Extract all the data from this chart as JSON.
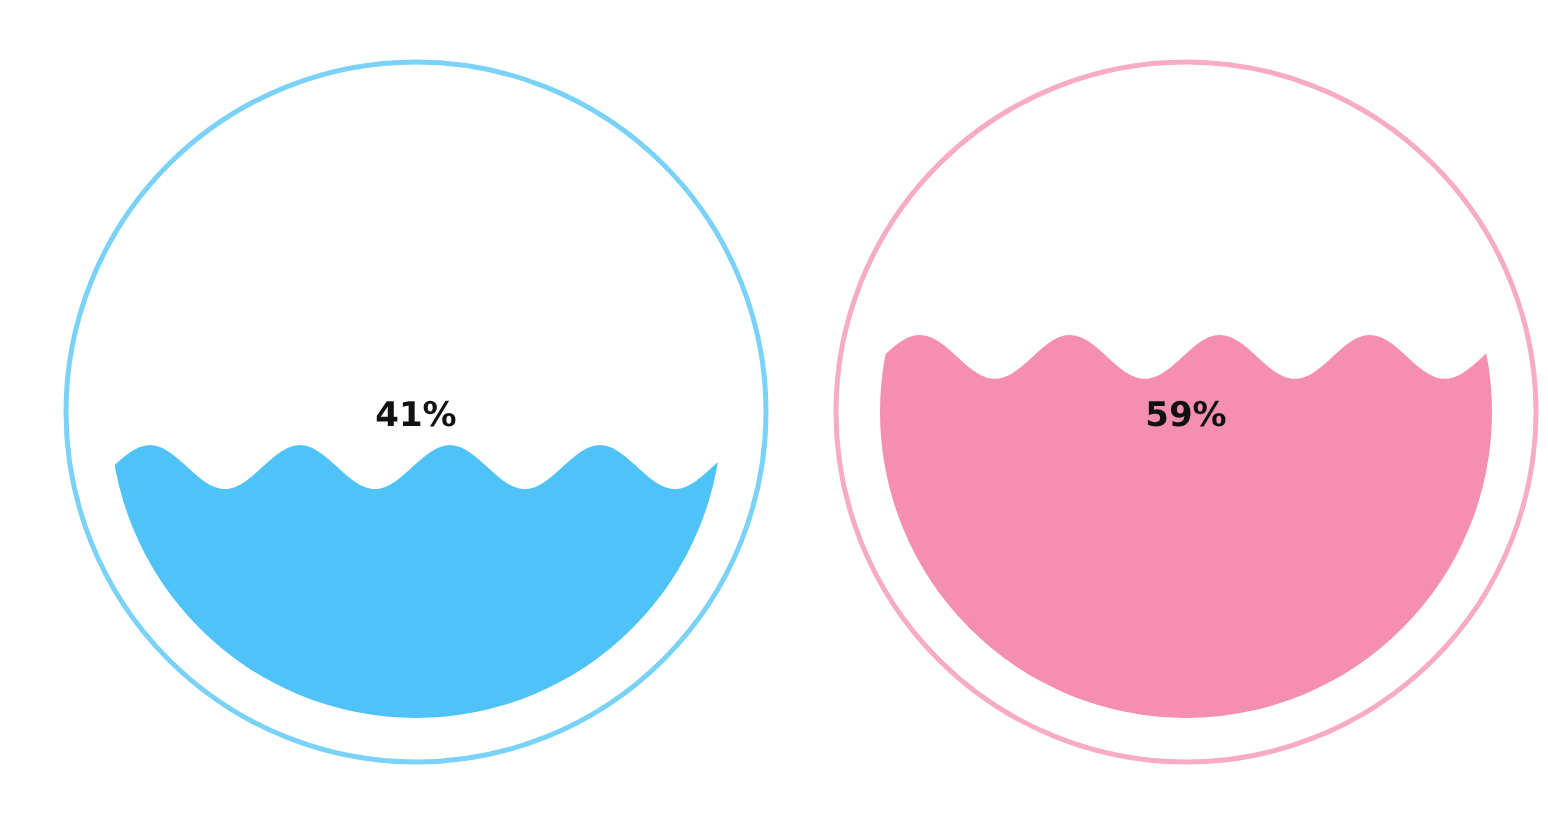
{
  "chart_data": [
    {
      "type": "other",
      "values": [
        41
      ],
      "value_labels": [
        "41%"
      ],
      "color": "#4fc3f7"
    },
    {
      "type": "other",
      "values": [
        59
      ],
      "value_labels": [
        "59%"
      ],
      "color": "#f48fb1"
    }
  ]
}
